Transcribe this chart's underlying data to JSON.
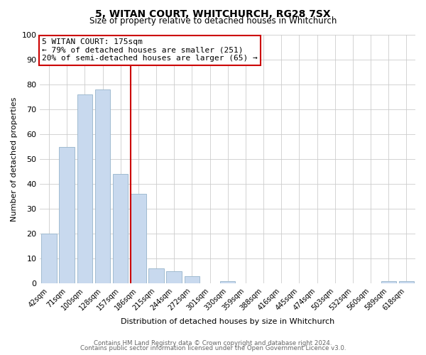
{
  "title": "5, WITAN COURT, WHITCHURCH, RG28 7SX",
  "subtitle": "Size of property relative to detached houses in Whitchurch",
  "xlabel": "Distribution of detached houses by size in Whitchurch",
  "ylabel": "Number of detached properties",
  "bar_labels": [
    "42sqm",
    "71sqm",
    "100sqm",
    "128sqm",
    "157sqm",
    "186sqm",
    "215sqm",
    "244sqm",
    "272sqm",
    "301sqm",
    "330sqm",
    "359sqm",
    "388sqm",
    "416sqm",
    "445sqm",
    "474sqm",
    "503sqm",
    "532sqm",
    "560sqm",
    "589sqm",
    "618sqm"
  ],
  "bar_values": [
    20,
    55,
    76,
    78,
    44,
    36,
    6,
    5,
    3,
    0,
    1,
    0,
    0,
    0,
    0,
    0,
    0,
    0,
    0,
    1,
    1
  ],
  "bar_color": "#c8d9ee",
  "bar_edge_color": "#a0bbd0",
  "vline_color": "#cc0000",
  "annotation_text": "5 WITAN COURT: 175sqm\n← 79% of detached houses are smaller (251)\n20% of semi-detached houses are larger (65) →",
  "annotation_box_color": "#ffffff",
  "annotation_box_edge": "#cc0000",
  "ylim": [
    0,
    100
  ],
  "yticks": [
    0,
    10,
    20,
    30,
    40,
    50,
    60,
    70,
    80,
    90,
    100
  ],
  "footnote_line1": "Contains HM Land Registry data © Crown copyright and database right 2024.",
  "footnote_line2": "Contains public sector information licensed under the Open Government Licence v3.0.",
  "bg_color": "#ffffff",
  "grid_color": "#cccccc"
}
